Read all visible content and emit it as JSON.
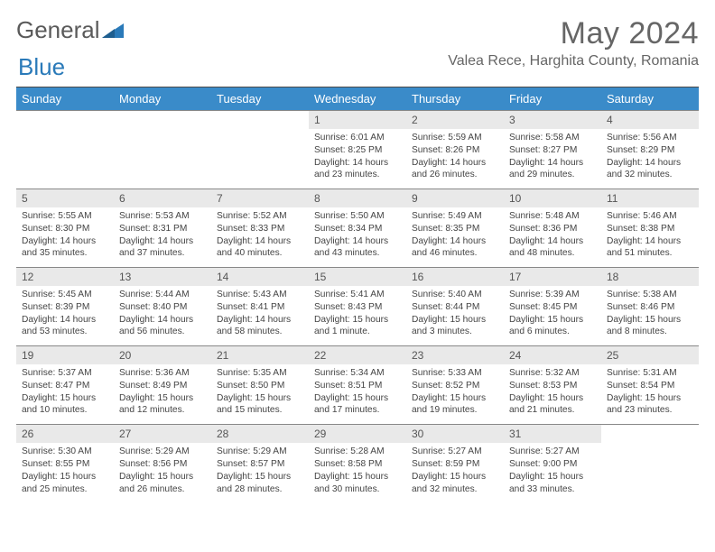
{
  "brand": {
    "part1": "General",
    "part2": "Blue"
  },
  "header": {
    "month_title": "May 2024",
    "location": "Valea Rece, Harghita County, Romania"
  },
  "colors": {
    "header_row_bg": "#3a8bc9",
    "header_row_text": "#ffffff",
    "daynum_bg": "#e9e9e9",
    "divider": "#4a4a4a",
    "cell_border": "#888888",
    "text": "#444444"
  },
  "weekdays": [
    "Sunday",
    "Monday",
    "Tuesday",
    "Wednesday",
    "Thursday",
    "Friday",
    "Saturday"
  ],
  "days": [
    {
      "n": 1,
      "sunrise": "6:01 AM",
      "sunset": "8:25 PM",
      "daylight": "14 hours and 23 minutes."
    },
    {
      "n": 2,
      "sunrise": "5:59 AM",
      "sunset": "8:26 PM",
      "daylight": "14 hours and 26 minutes."
    },
    {
      "n": 3,
      "sunrise": "5:58 AM",
      "sunset": "8:27 PM",
      "daylight": "14 hours and 29 minutes."
    },
    {
      "n": 4,
      "sunrise": "5:56 AM",
      "sunset": "8:29 PM",
      "daylight": "14 hours and 32 minutes."
    },
    {
      "n": 5,
      "sunrise": "5:55 AM",
      "sunset": "8:30 PM",
      "daylight": "14 hours and 35 minutes."
    },
    {
      "n": 6,
      "sunrise": "5:53 AM",
      "sunset": "8:31 PM",
      "daylight": "14 hours and 37 minutes."
    },
    {
      "n": 7,
      "sunrise": "5:52 AM",
      "sunset": "8:33 PM",
      "daylight": "14 hours and 40 minutes."
    },
    {
      "n": 8,
      "sunrise": "5:50 AM",
      "sunset": "8:34 PM",
      "daylight": "14 hours and 43 minutes."
    },
    {
      "n": 9,
      "sunrise": "5:49 AM",
      "sunset": "8:35 PM",
      "daylight": "14 hours and 46 minutes."
    },
    {
      "n": 10,
      "sunrise": "5:48 AM",
      "sunset": "8:36 PM",
      "daylight": "14 hours and 48 minutes."
    },
    {
      "n": 11,
      "sunrise": "5:46 AM",
      "sunset": "8:38 PM",
      "daylight": "14 hours and 51 minutes."
    },
    {
      "n": 12,
      "sunrise": "5:45 AM",
      "sunset": "8:39 PM",
      "daylight": "14 hours and 53 minutes."
    },
    {
      "n": 13,
      "sunrise": "5:44 AM",
      "sunset": "8:40 PM",
      "daylight": "14 hours and 56 minutes."
    },
    {
      "n": 14,
      "sunrise": "5:43 AM",
      "sunset": "8:41 PM",
      "daylight": "14 hours and 58 minutes."
    },
    {
      "n": 15,
      "sunrise": "5:41 AM",
      "sunset": "8:43 PM",
      "daylight": "15 hours and 1 minute."
    },
    {
      "n": 16,
      "sunrise": "5:40 AM",
      "sunset": "8:44 PM",
      "daylight": "15 hours and 3 minutes."
    },
    {
      "n": 17,
      "sunrise": "5:39 AM",
      "sunset": "8:45 PM",
      "daylight": "15 hours and 6 minutes."
    },
    {
      "n": 18,
      "sunrise": "5:38 AM",
      "sunset": "8:46 PM",
      "daylight": "15 hours and 8 minutes."
    },
    {
      "n": 19,
      "sunrise": "5:37 AM",
      "sunset": "8:47 PM",
      "daylight": "15 hours and 10 minutes."
    },
    {
      "n": 20,
      "sunrise": "5:36 AM",
      "sunset": "8:49 PM",
      "daylight": "15 hours and 12 minutes."
    },
    {
      "n": 21,
      "sunrise": "5:35 AM",
      "sunset": "8:50 PM",
      "daylight": "15 hours and 15 minutes."
    },
    {
      "n": 22,
      "sunrise": "5:34 AM",
      "sunset": "8:51 PM",
      "daylight": "15 hours and 17 minutes."
    },
    {
      "n": 23,
      "sunrise": "5:33 AM",
      "sunset": "8:52 PM",
      "daylight": "15 hours and 19 minutes."
    },
    {
      "n": 24,
      "sunrise": "5:32 AM",
      "sunset": "8:53 PM",
      "daylight": "15 hours and 21 minutes."
    },
    {
      "n": 25,
      "sunrise": "5:31 AM",
      "sunset": "8:54 PM",
      "daylight": "15 hours and 23 minutes."
    },
    {
      "n": 26,
      "sunrise": "5:30 AM",
      "sunset": "8:55 PM",
      "daylight": "15 hours and 25 minutes."
    },
    {
      "n": 27,
      "sunrise": "5:29 AM",
      "sunset": "8:56 PM",
      "daylight": "15 hours and 26 minutes."
    },
    {
      "n": 28,
      "sunrise": "5:29 AM",
      "sunset": "8:57 PM",
      "daylight": "15 hours and 28 minutes."
    },
    {
      "n": 29,
      "sunrise": "5:28 AM",
      "sunset": "8:58 PM",
      "daylight": "15 hours and 30 minutes."
    },
    {
      "n": 30,
      "sunrise": "5:27 AM",
      "sunset": "8:59 PM",
      "daylight": "15 hours and 32 minutes."
    },
    {
      "n": 31,
      "sunrise": "5:27 AM",
      "sunset": "9:00 PM",
      "daylight": "15 hours and 33 minutes."
    }
  ],
  "layout": {
    "first_weekday_index": 3,
    "rows": 5,
    "cols": 7
  },
  "labels": {
    "sunrise": "Sunrise: ",
    "sunset": "Sunset: ",
    "daylight": "Daylight: "
  }
}
